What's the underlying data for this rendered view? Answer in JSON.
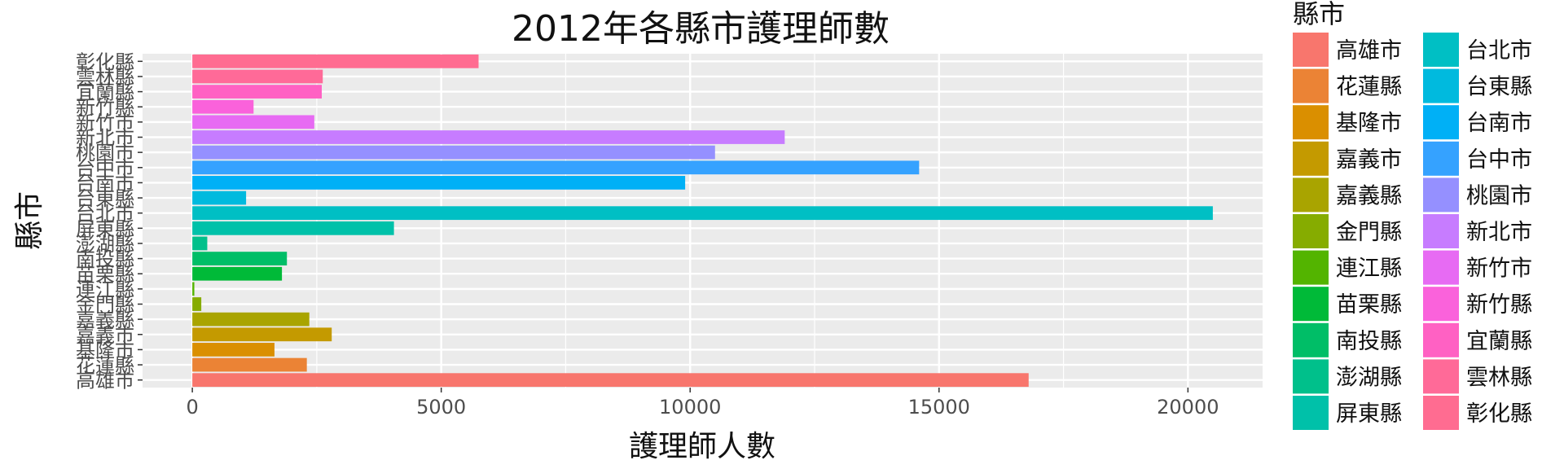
{
  "chart_data": {
    "type": "bar",
    "orientation": "horizontal",
    "title": "2012年各縣市護理師數",
    "xlabel": "護理師人數",
    "ylabel": "縣市",
    "xlim": [
      -1000,
      21500
    ],
    "x_ticks": [
      0,
      5000,
      10000,
      15000,
      20000
    ],
    "grid": true,
    "legend_title": "縣市",
    "legend_position": "right",
    "categories": [
      "高雄市",
      "花蓮縣",
      "基隆市",
      "嘉義市",
      "嘉義縣",
      "金門縣",
      "連江縣",
      "苗栗縣",
      "南投縣",
      "澎湖縣",
      "屏東縣",
      "台北市",
      "台東縣",
      "台南市",
      "台中市",
      "桃園市",
      "新北市",
      "新竹市",
      "新竹縣",
      "宜蘭縣",
      "雲林縣",
      "彰化縣"
    ],
    "values": [
      16800,
      2300,
      1650,
      2800,
      2350,
      180,
      40,
      1800,
      1900,
      300,
      4050,
      20500,
      1080,
      9900,
      14600,
      10500,
      11900,
      2450,
      1230,
      2600,
      2620,
      5750
    ],
    "colors": [
      "#F8766D",
      "#EB8335",
      "#DA8F00",
      "#C49A00",
      "#A9A400",
      "#86AC00",
      "#53B400",
      "#00BA38",
      "#00BE67",
      "#00C08B",
      "#00C1A9",
      "#00BFC4",
      "#00BADE",
      "#00B0F6",
      "#35A2FF",
      "#9590FF",
      "#C77CFF",
      "#E76BF3",
      "#FA62DB",
      "#FF61C3",
      "#FF6A98",
      "#FF6C91"
    ]
  }
}
